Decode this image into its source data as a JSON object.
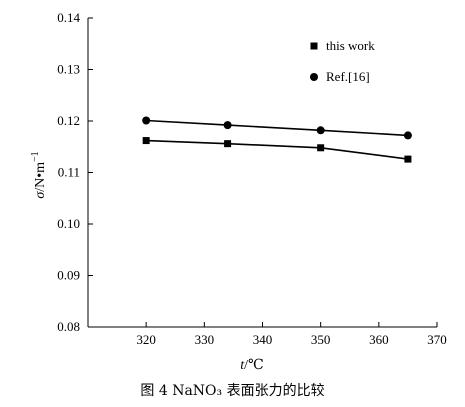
{
  "chart_data": {
    "type": "line",
    "x": [
      320,
      334,
      350,
      365
    ],
    "series": [
      {
        "name": "this work",
        "marker": "square",
        "values": [
          0.1162,
          0.1156,
          0.1148,
          0.1126
        ]
      },
      {
        "name": "Ref.[16]",
        "marker": "circle",
        "values": [
          0.1201,
          0.1192,
          0.1182,
          0.1172
        ]
      }
    ],
    "xlim": [
      310,
      370
    ],
    "ylim": [
      0.08,
      0.14
    ],
    "xticks": [
      "320",
      "330",
      "340",
      "350",
      "360",
      "370"
    ],
    "yticks": [
      "0.08",
      "0.09",
      "0.10",
      "0.11",
      "0.12",
      "0.13",
      "0.14"
    ],
    "xlabel": "t/℃",
    "ylabel": "σ/N•m⁻¹",
    "legend_position": "top-right",
    "grid": false,
    "colors": {
      "line": "#000000",
      "marker": "#000000"
    }
  },
  "caption": "图 4   NaNO₃ 表面张力的比较"
}
